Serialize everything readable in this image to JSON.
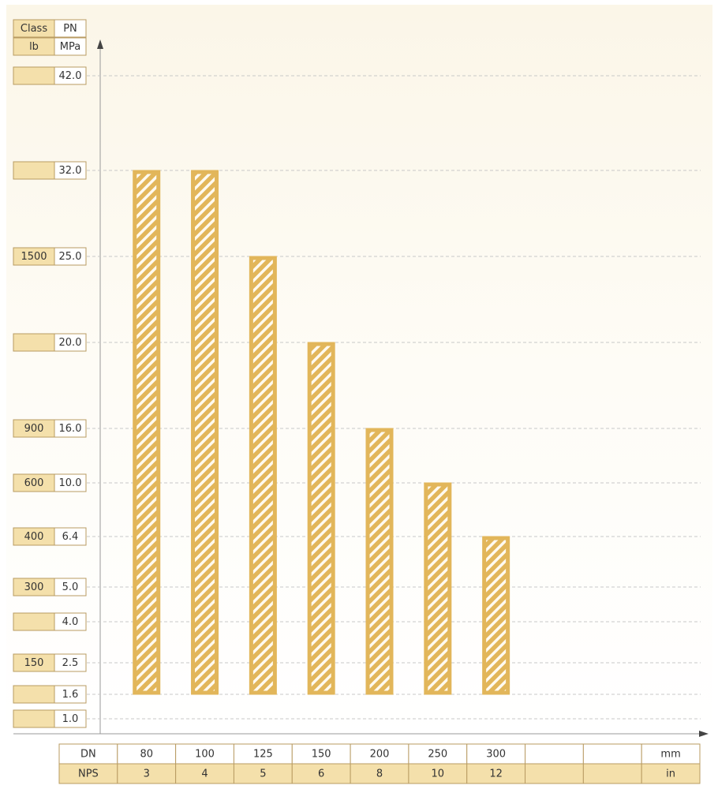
{
  "chart_data": {
    "type": "bar",
    "class_header": [
      "Class",
      "lb"
    ],
    "pn_header": [
      "PN",
      "MPa"
    ],
    "yticks": [
      {
        "value": 42,
        "label": "42.0"
      },
      {
        "value": 32,
        "label": "32.0"
      },
      {
        "value": 25,
        "label": "25.0"
      },
      {
        "value": 20,
        "label": "20.0"
      },
      {
        "value": 16,
        "label": "16.0"
      },
      {
        "value": 10,
        "label": "10.0"
      },
      6.4,
      {
        "value": 5,
        "label": "5.0"
      },
      {
        "value": 4,
        "label": "4.0"
      },
      2.5,
      1.6,
      {
        "value": 1,
        "label": "1.0"
      }
    ],
    "class_labels": [
      null,
      null,
      "1500",
      null,
      "900",
      "600",
      "400",
      "300",
      null,
      "150",
      null,
      null
    ],
    "ylim": [
      1,
      42
    ],
    "base": 1.6,
    "grid": true,
    "color": "#e2b65a",
    "row_headers": [
      "DN",
      "NPS"
    ],
    "units": [
      "mm",
      "in"
    ],
    "categories": [
      "80",
      "100",
      "125",
      "150",
      "200",
      "250",
      "300"
    ],
    "nps": [
      "3",
      "4",
      "5",
      "6",
      "8",
      "10",
      "12"
    ],
    "values": [
      32,
      32,
      25,
      20,
      16,
      10,
      6.4
    ]
  }
}
